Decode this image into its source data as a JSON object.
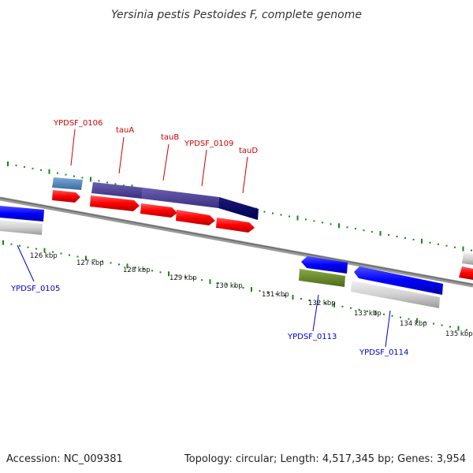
{
  "title": "Yersinia pestis Pestoides F, complete genome",
  "footer": {
    "accession": "Accession: NC_009381",
    "summary": "Topology: circular; Length: 4,517,345 bp; Genes: 3,954"
  },
  "colors": {
    "upper_label": "#cc0000",
    "lower_label": "#0000cc",
    "tick": "#118811",
    "backbone": "#888888"
  },
  "ticks": {
    "major_labels": [
      "126 kbp",
      "127 kbp",
      "128 kbp",
      "129 kbp",
      "130 kbp",
      "131 kbp",
      "132 kbp",
      "133 kbp",
      "134 kbp",
      "135 kbp"
    ]
  },
  "genes_upper": [
    {
      "name": "YPDSF_0106",
      "color": "#cc0000"
    },
    {
      "name": "tauA",
      "color": "#cc0000"
    },
    {
      "name": "tauB",
      "color": "#cc0000"
    },
    {
      "name": "YPDSF_0109",
      "color": "#cc0000"
    },
    {
      "name": "tauD",
      "color": "#cc0000"
    }
  ],
  "genes_lower": [
    {
      "name": "YPDSF_0105",
      "color": "#0000cc"
    },
    {
      "name": "YPDSF_0113",
      "color": "#0000cc"
    },
    {
      "name": "YPDSF_0114",
      "color": "#0000cc"
    }
  ]
}
